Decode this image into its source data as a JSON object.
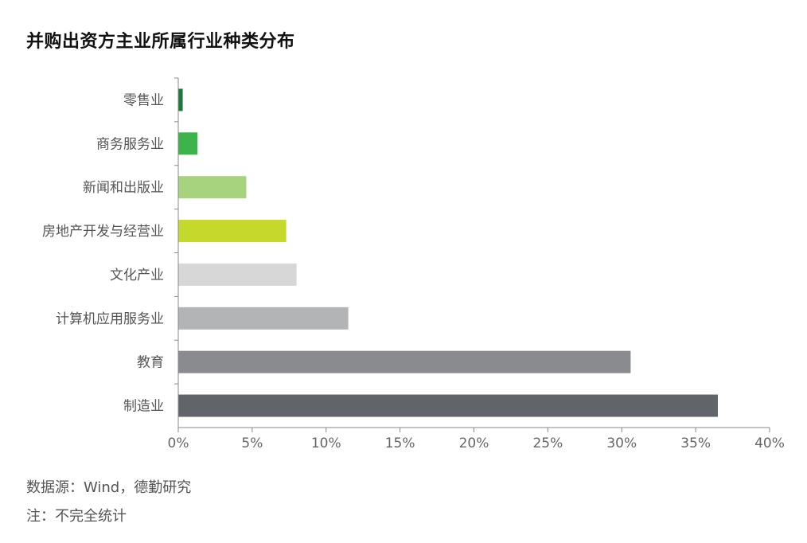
{
  "chart_data": {
    "type": "bar",
    "orientation": "horizontal",
    "title": "并购出资方主业所属行业种类分布",
    "categories": [
      "零售业",
      "商务服务业",
      "新闻和出版业",
      "房地产开发与经营业",
      "文化产业",
      "计算机应用服务业",
      "教育",
      "制造业"
    ],
    "values": [
      0.3,
      1.3,
      4.6,
      7.3,
      8.0,
      11.5,
      30.6,
      36.5
    ],
    "colors": [
      "#1a7a3c",
      "#3cb44b",
      "#a7d37e",
      "#c5d92d",
      "#d6d7d6",
      "#b2b4b5",
      "#898b8e",
      "#61646b"
    ],
    "xlim": [
      0,
      40
    ],
    "xticks": [
      "0%",
      "5%",
      "10%",
      "15%",
      "20%",
      "25%",
      "30%",
      "35%",
      "40%"
    ],
    "xlabel": "",
    "ylabel": "",
    "grid": false
  },
  "notes": {
    "source": "数据源：Wind，德勤研究",
    "footnote": "注：不完全统计"
  }
}
